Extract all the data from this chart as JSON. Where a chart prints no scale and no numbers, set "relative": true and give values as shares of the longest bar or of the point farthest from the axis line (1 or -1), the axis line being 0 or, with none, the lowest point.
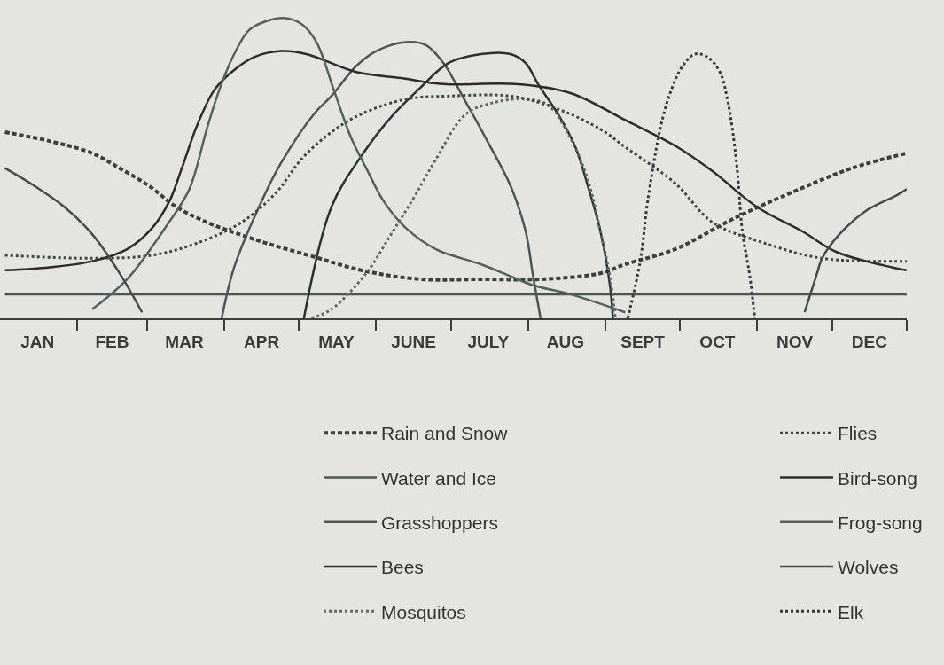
{
  "chart_data": {
    "type": "line",
    "relative": true,
    "legend": "bottom",
    "xlim": [
      "--01-01",
      "--12-31"
    ],
    "xticks": [
      {
        "value": "--01-16",
        "label": "JAN"
      },
      {
        "value": "--02-01",
        "label": null
      },
      {
        "value": "--02-15",
        "label": "FEB"
      },
      {
        "value": "--03-01",
        "label": null
      },
      {
        "value": "--03-16",
        "label": "MAR"
      },
      {
        "value": "--04-01",
        "label": null
      },
      {
        "value": "--04-16",
        "label": "APR"
      },
      {
        "value": "--05-01",
        "label": null
      },
      {
        "value": "--05-16",
        "label": "MAY"
      },
      {
        "value": "--06-01",
        "label": null
      },
      {
        "value": "--06-16",
        "label": "JUNE"
      },
      {
        "value": "--07-01",
        "label": null
      },
      {
        "value": "--07-16",
        "label": "JULY"
      },
      {
        "value": "--08-01",
        "label": null
      },
      {
        "value": "--08-16",
        "label": "AUG"
      },
      {
        "value": "--09-01",
        "label": null
      },
      {
        "value": "--09-16",
        "label": "SEPT"
      },
      {
        "value": "--10-01",
        "label": null
      },
      {
        "value": "--10-16",
        "label": "OCT"
      },
      {
        "value": "--11-01",
        "label": null
      },
      {
        "value": "--11-16",
        "label": "NOV"
      },
      {
        "value": "--12-01",
        "label": null
      },
      {
        "value": "--12-16",
        "label": "DEC"
      },
      {
        "value": "--12-31",
        "label": null
      }
    ],
    "series": [
      {
        "name": "Rain and Snow",
        "color": "#3a3f3f",
        "line_style": "dashed",
        "x": [
          "--01-03",
          "--01-21",
          "--02-07",
          "--02-18",
          "--03-02",
          "--03-13",
          "--03-25",
          "--04-07",
          "--04-18",
          "--05-09",
          "--05-26",
          "--06-19",
          "--07-13",
          "--08-06",
          "--08-30",
          "--09-09",
          "--09-29",
          "--10-22",
          "--11-15",
          "--12-09",
          "--12-31"
        ],
        "values": [
          0.62,
          0.59,
          0.55,
          0.5,
          0.44,
          0.37,
          0.32,
          0.28,
          0.25,
          0.2,
          0.16,
          0.13,
          0.13,
          0.13,
          0.15,
          0.18,
          0.23,
          0.33,
          0.42,
          0.5,
          0.55
        ]
      },
      {
        "name": "Water and Ice",
        "color": "#4a5654",
        "line_style": "solid",
        "x": [
          "--01-03",
          "--04-01",
          "--07-01",
          "--10-01",
          "--12-31"
        ],
        "values": [
          0.08,
          0.08,
          0.08,
          0.08,
          0.08
        ]
      },
      {
        "name": "Grasshoppers",
        "color": "#4d5656",
        "line_style": "solid",
        "x": [
          "--03-31",
          "--04-05",
          "--04-16",
          "--04-24",
          "--05-07",
          "--05-14",
          "--05-24",
          "--06-01",
          "--06-13",
          "--06-21",
          "--06-28",
          "--07-07",
          "--07-15",
          "--07-25",
          "--07-31",
          "--08-03",
          "--08-06"
        ],
        "values": [
          0,
          0.17,
          0.39,
          0.52,
          0.68,
          0.74,
          0.84,
          0.89,
          0.92,
          0.91,
          0.85,
          0.72,
          0.6,
          0.44,
          0.29,
          0.14,
          0
        ]
      },
      {
        "name": "Bees",
        "color": "#2b3131",
        "line_style": "solid",
        "x": [
          "--05-03",
          "--05-14",
          "--05-26",
          "--06-07",
          "--06-19",
          "--06-30",
          "--07-13",
          "--07-25",
          "--07-31",
          "--08-05",
          "--08-13",
          "--08-20",
          "--08-25",
          "--08-30",
          "--09-03",
          "--09-04"
        ],
        "values": [
          0,
          0.37,
          0.54,
          0.67,
          0.77,
          0.85,
          0.88,
          0.88,
          0.85,
          0.78,
          0.68,
          0.57,
          0.44,
          0.29,
          0.1,
          0
        ]
      },
      {
        "name": "Mosquitos",
        "color": "#5f6867",
        "line_style": "dotted",
        "x": [
          "--05-06",
          "--05-14",
          "--05-28",
          "--06-07",
          "--06-16",
          "--06-25",
          "--07-07",
          "--07-19",
          "--07-31",
          "--08-09",
          "--08-18",
          "--08-25",
          "--08-30",
          "--09-03",
          "--09-05"
        ],
        "values": [
          0,
          0.03,
          0.15,
          0.28,
          0.4,
          0.53,
          0.68,
          0.72,
          0.73,
          0.71,
          0.6,
          0.46,
          0.29,
          0.13,
          0
        ]
      },
      {
        "name": "Flies",
        "color": "#3f4646",
        "line_style": "dotted",
        "x": [
          "--01-03",
          "--02-07",
          "--03-03",
          "--03-21",
          "--04-08",
          "--04-22",
          "--05-02",
          "--05-14",
          "--05-26",
          "--06-13",
          "--06-30",
          "--07-25",
          "--08-12",
          "--08-30",
          "--09-09",
          "--09-29",
          "--10-14",
          "--11-04",
          "--11-27",
          "--12-31"
        ],
        "values": [
          0.21,
          0.2,
          0.21,
          0.25,
          0.32,
          0.42,
          0.53,
          0.62,
          0.68,
          0.73,
          0.74,
          0.74,
          0.7,
          0.63,
          0.57,
          0.45,
          0.32,
          0.25,
          0.2,
          0.19
        ]
      },
      {
        "name": "Bird-song",
        "color": "#2e2a2d",
        "line_style": "solid",
        "x": [
          "--01-03",
          "--01-21",
          "--02-07",
          "--02-21",
          "--03-03",
          "--03-10",
          "--03-15",
          "--03-21",
          "--03-28",
          "--04-04",
          "--04-13",
          "--04-24",
          "--05-04",
          "--05-24",
          "--06-11",
          "--06-28",
          "--07-27",
          "--08-18",
          "--09-09",
          "--09-30",
          "--10-14",
          "--11-01",
          "--11-19",
          "--12-03",
          "--12-25",
          "--12-31"
        ],
        "values": [
          0.16,
          0.17,
          0.19,
          0.23,
          0.3,
          0.39,
          0.5,
          0.64,
          0.76,
          0.82,
          0.87,
          0.89,
          0.88,
          0.82,
          0.8,
          0.78,
          0.78,
          0.75,
          0.66,
          0.57,
          0.49,
          0.37,
          0.29,
          0.22,
          0.17,
          0.16
        ]
      },
      {
        "name": "Frog-song",
        "color": "#56605f",
        "line_style": "solid",
        "x": [
          "--02-07",
          "--02-21",
          "--03-09",
          "--03-18",
          "--03-25",
          "--03-30",
          "--04-05",
          "--04-11",
          "--04-18",
          "--04-25",
          "--05-02",
          "--05-08",
          "--05-15",
          "--05-22",
          "--05-28",
          "--06-04",
          "--06-13",
          "--06-25",
          "--07-13",
          "--07-25",
          "--08-03",
          "--08-18",
          "--09-09"
        ],
        "values": [
          0.03,
          0.13,
          0.31,
          0.43,
          0.63,
          0.76,
          0.88,
          0.96,
          0.99,
          1,
          0.98,
          0.92,
          0.76,
          0.6,
          0.5,
          0.39,
          0.3,
          0.23,
          0.18,
          0.14,
          0.11,
          0.08,
          0.02
        ]
      },
      {
        "name": "Wolves",
        "color": "#454d4c",
        "line_style": "solid",
        "x": [
          "--01-03",
          "--01-15",
          "--01-27",
          "--02-07",
          "--02-18",
          "--02-27",
          "--07-01",
          "--11-20",
          "--11-25",
          "--11-27",
          "--12-04",
          "--12-15",
          "--12-27",
          "--12-31"
        ],
        "values": [
          0.5,
          0.44,
          0.37,
          0.28,
          0.15,
          0.02,
          null,
          0.02,
          0.15,
          0.2,
          0.28,
          0.36,
          0.41,
          0.43
        ]
      },
      {
        "name": "Elk",
        "color": "#343a3a",
        "line_style": "dotted",
        "x": [
          "--09-10",
          "--09-15",
          "--09-18",
          "--09-23",
          "--09-27",
          "--10-02",
          "--10-07",
          "--10-12",
          "--10-17",
          "--10-20",
          "--10-22",
          "--10-24",
          "--10-26",
          "--10-29",
          "--10-31"
        ],
        "values": [
          0,
          0.19,
          0.39,
          0.63,
          0.75,
          0.84,
          0.88,
          0.87,
          0.82,
          0.73,
          0.63,
          0.49,
          0.29,
          0.14,
          0
        ]
      }
    ]
  }
}
